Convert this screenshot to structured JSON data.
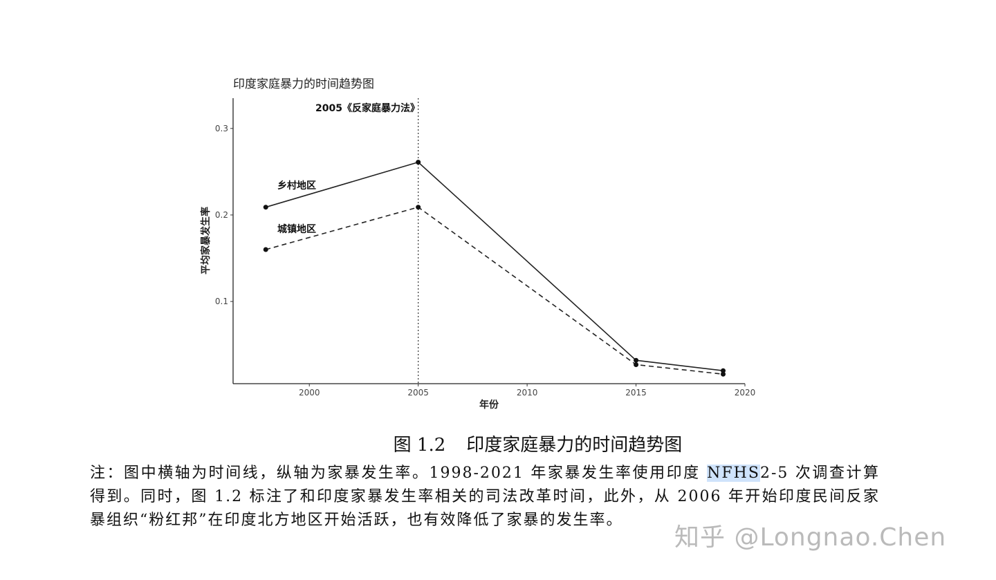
{
  "chart_data": {
    "type": "line",
    "title": "印度家庭暴力的时间趋势图",
    "xlabel": "年份",
    "ylabel": "平均家暴发生率",
    "xlim": [
      1996.5,
      2020
    ],
    "ylim": [
      0.005,
      0.335
    ],
    "xticks": [
      2000,
      2005,
      2010,
      2015,
      2020
    ],
    "yticks": [
      0.1,
      0.2,
      0.3
    ],
    "xtick_labels": [
      "2000",
      "2005",
      "2010",
      "2015",
      "2020"
    ],
    "ytick_labels": [
      "0.1",
      "0.2",
      "0.3"
    ],
    "x": [
      1998,
      2005,
      2015,
      2019
    ],
    "series": [
      {
        "name": "乡村地区",
        "values": [
          0.209,
          0.261,
          0.032,
          0.02
        ],
        "style": "solid"
      },
      {
        "name": "城镇地区",
        "values": [
          0.16,
          0.209,
          0.027,
          0.016
        ],
        "style": "dashed"
      }
    ],
    "annotation": {
      "x": 2005,
      "text": "2005《反家庭暴力法》",
      "style": "dotted-vertical-line"
    },
    "grid": false,
    "legend": "inline-labels"
  },
  "figure": {
    "caption_number": "图 1.2",
    "caption_text": "印度家庭暴力的时间趋势图"
  },
  "note": {
    "before": "注：图中横轴为时间线，纵轴为家暴发生率。1998-2021 年家暴发生率使用印度 ",
    "highlight": "NFHS",
    "after": "2-5 次调查计算得到。同时，图 1.2 标注了和印度家暴发生率相关的司法改革时间，此外，从 2006 年开始印度民间反家暴组织“粉红邦”在印度北方地区开始活跃，也有效降低了家暴的发生率。"
  },
  "watermark": "知乎 @Longnao.Chen"
}
